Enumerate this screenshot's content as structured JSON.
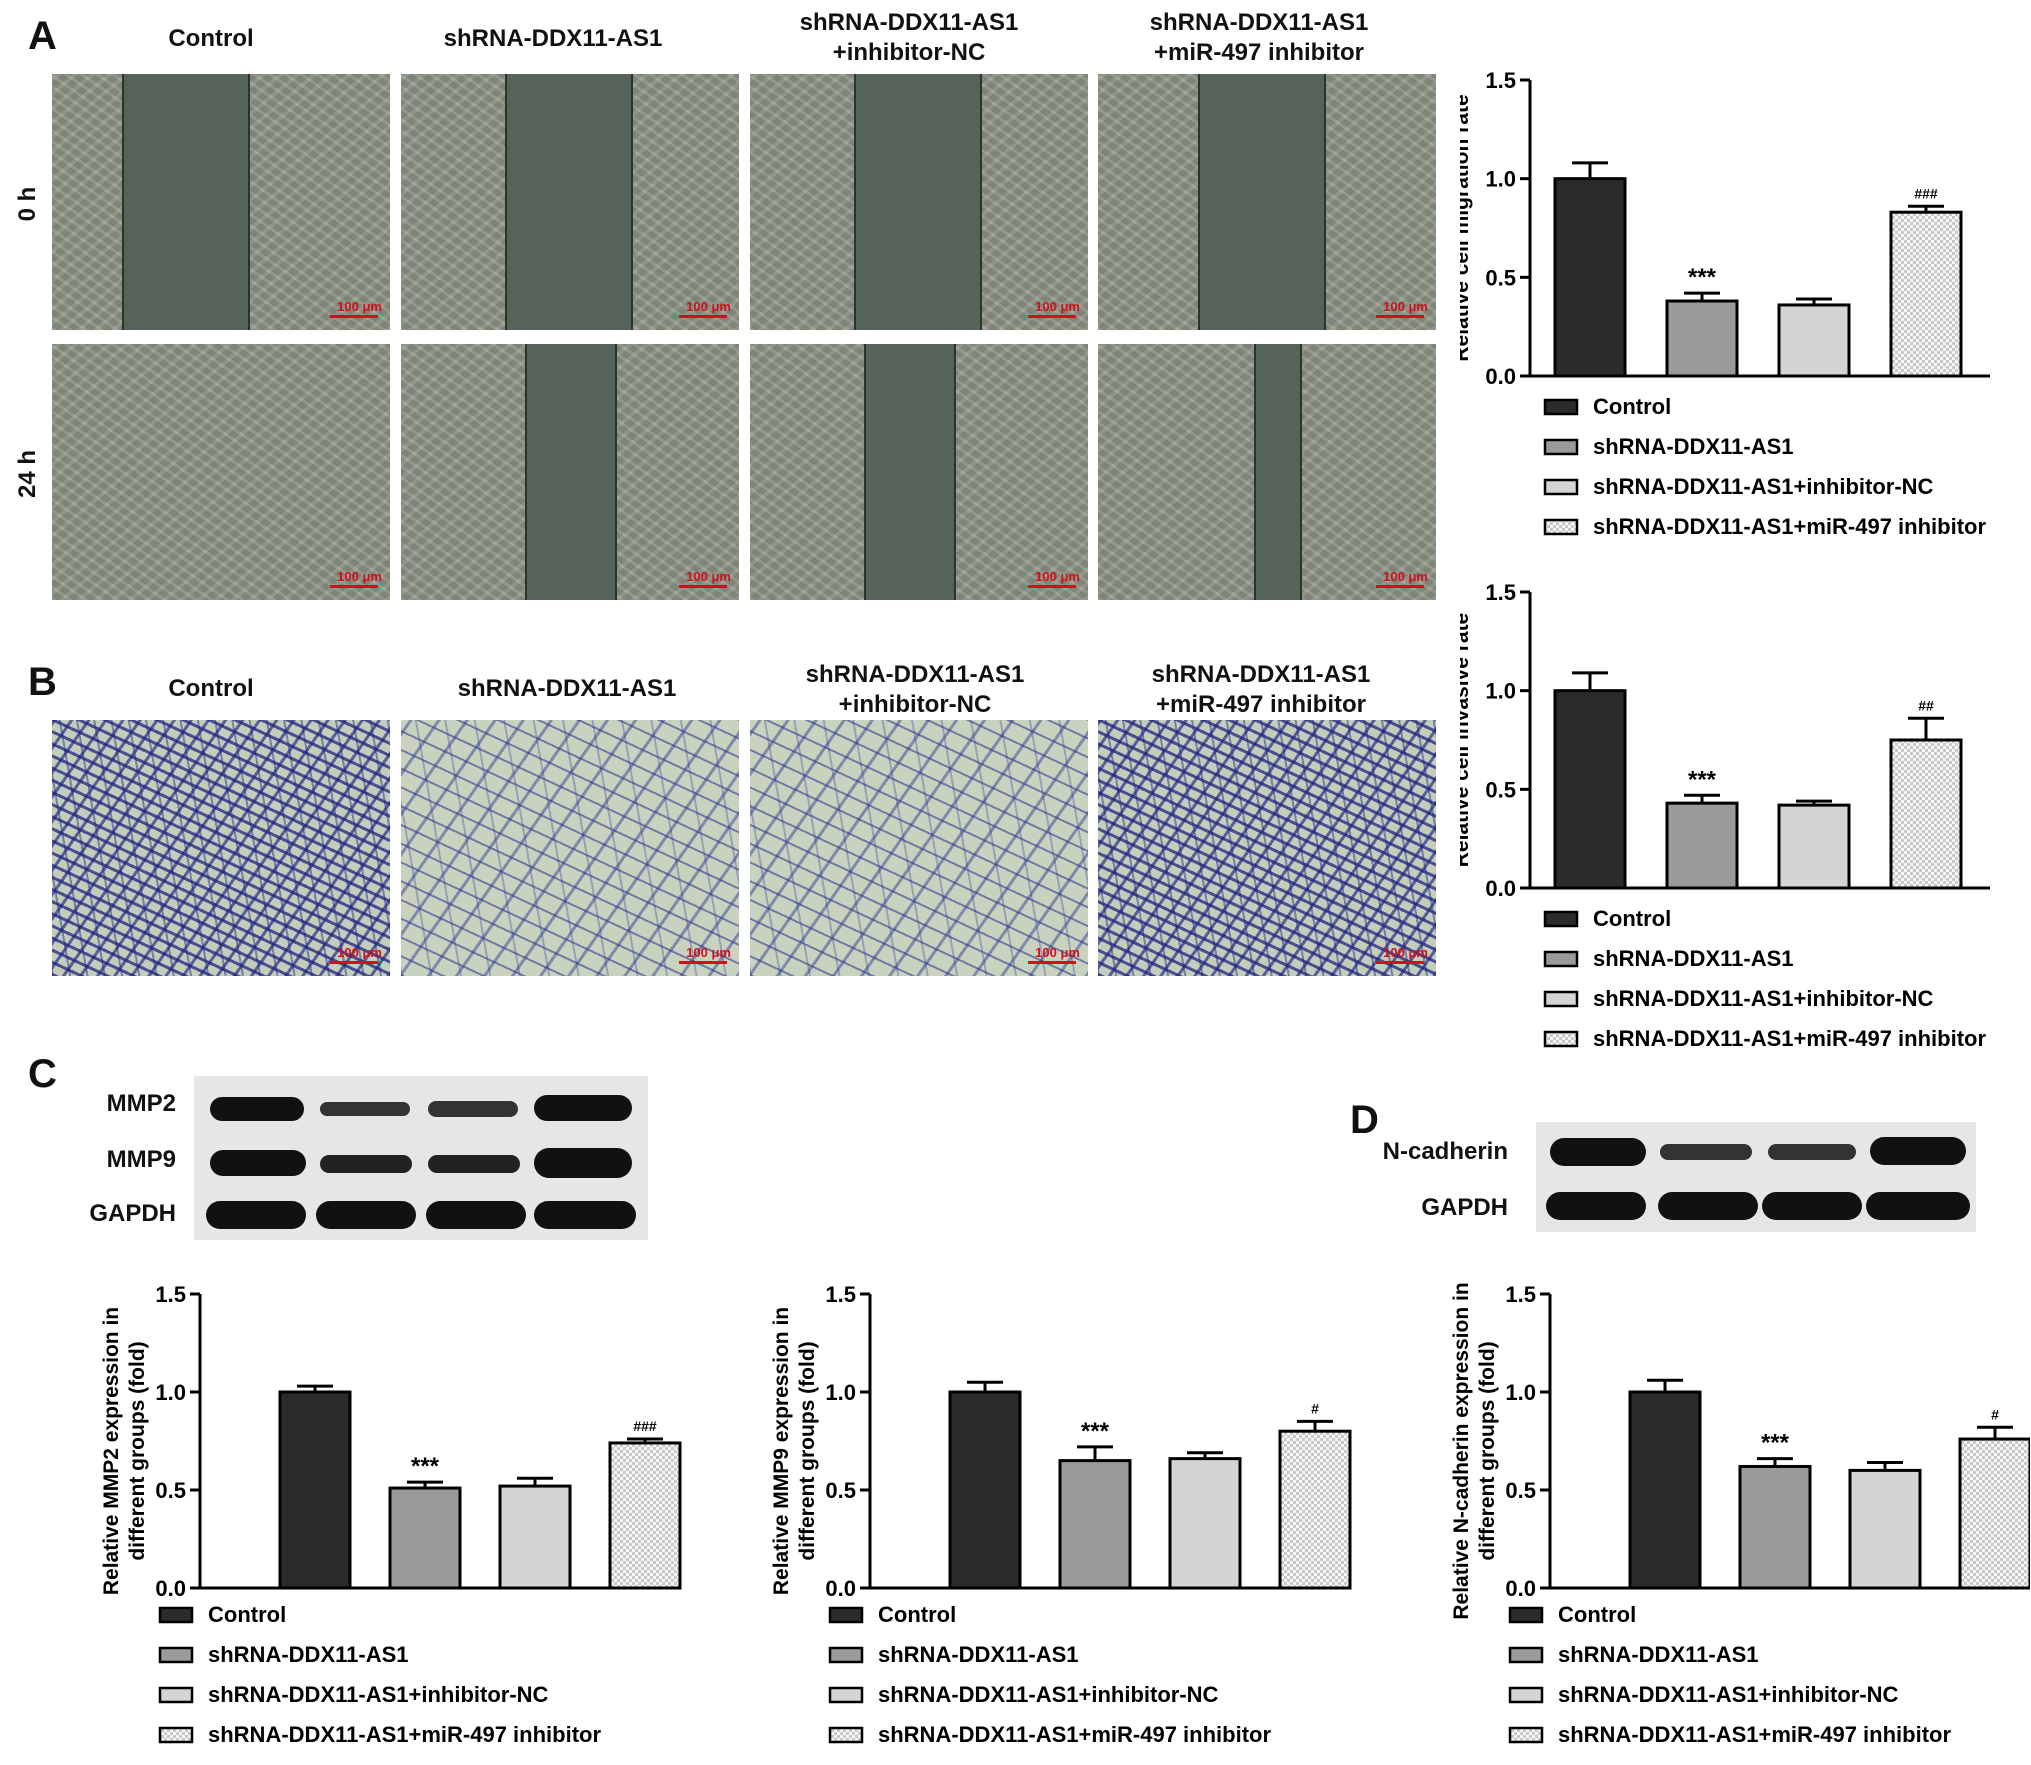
{
  "panels": {
    "a": "A",
    "b": "B",
    "c": "C",
    "d": "D"
  },
  "groups": [
    "Control",
    "shRNA-DDX11-AS1",
    "shRNA-DDX11-AS1+inhibitor-NC",
    "shRNA-DDX11-AS1+miR-497 inhibitor"
  ],
  "column_headers": [
    {
      "line1": "Control",
      "line2": ""
    },
    {
      "line1": "shRNA-DDX11-AS1",
      "line2": ""
    },
    {
      "line1": "shRNA-DDX11-AS1",
      "line2": "+inhibitor-NC"
    },
    {
      "line1": "shRNA-DDX11-AS1",
      "line2": "+miR-497 inhibitor"
    }
  ],
  "row_labels": {
    "t0": "0 h",
    "t24": "24 h"
  },
  "scale_bar": "100 μm",
  "blots": {
    "c": {
      "labels": [
        "MMP2",
        "MMP9",
        "GAPDH"
      ]
    },
    "d": {
      "labels": [
        "N-cadherin",
        "GAPDH"
      ]
    }
  },
  "colors": {
    "control": "#2b2b2b",
    "sh": "#9a9a9a",
    "nc": "#d4d4d4",
    "inh": "#f4f4f4"
  },
  "chart_data": [
    {
      "type": "bar",
      "id": "migration",
      "categories": [
        "Control",
        "shRNA-DDX11-AS1",
        "shRNA-DDX11-AS1+inhibitor-NC",
        "shRNA-DDX11-AS1+miR-497 inhibitor"
      ],
      "values": [
        1.0,
        0.38,
        0.36,
        0.83
      ],
      "errors": [
        0.08,
        0.04,
        0.03,
        0.03
      ],
      "annotations": [
        "",
        "***",
        "",
        "###"
      ],
      "ylabel": "Relative cell migration rate",
      "ylim": [
        0,
        1.5
      ],
      "yticks": [
        "0.0",
        "0.5",
        "1.0",
        "1.5"
      ],
      "legend": "below"
    },
    {
      "type": "bar",
      "id": "invasion",
      "categories": [
        "Control",
        "shRNA-DDX11-AS1",
        "shRNA-DDX11-AS1+inhibitor-NC",
        "shRNA-DDX11-AS1+miR-497 inhibitor"
      ],
      "values": [
        1.0,
        0.43,
        0.42,
        0.75
      ],
      "errors": [
        0.09,
        0.04,
        0.02,
        0.11
      ],
      "annotations": [
        "",
        "***",
        "",
        "##"
      ],
      "ylabel": "Relative cell invasive rate",
      "ylim": [
        0,
        1.5
      ],
      "yticks": [
        "0.0",
        "0.5",
        "1.0",
        "1.5"
      ],
      "legend": "below"
    },
    {
      "type": "bar",
      "id": "mmp2",
      "categories": [
        "Control",
        "shRNA-DDX11-AS1",
        "shRNA-DDX11-AS1+inhibitor-NC",
        "shRNA-DDX11-AS1+miR-497 inhibitor"
      ],
      "values": [
        1.0,
        0.51,
        0.52,
        0.74
      ],
      "errors": [
        0.03,
        0.03,
        0.04,
        0.02
      ],
      "annotations": [
        "",
        "***",
        "",
        "###"
      ],
      "ylabel_lines": [
        "Relative MMP2 expression in",
        "different groups (fold)"
      ],
      "ylim": [
        0,
        1.5
      ],
      "yticks": [
        "0.0",
        "0.5",
        "1.0",
        "1.5"
      ],
      "legend": "below"
    },
    {
      "type": "bar",
      "id": "mmp9",
      "categories": [
        "Control",
        "shRNA-DDX11-AS1",
        "shRNA-DDX11-AS1+inhibitor-NC",
        "shRNA-DDX11-AS1+miR-497 inhibitor"
      ],
      "values": [
        1.0,
        0.65,
        0.66,
        0.8
      ],
      "errors": [
        0.05,
        0.07,
        0.03,
        0.05
      ],
      "annotations": [
        "",
        "***",
        "",
        "#"
      ],
      "ylabel_lines": [
        "Relative MMP9 expression in",
        "different groups (fold)"
      ],
      "ylim": [
        0,
        1.5
      ],
      "yticks": [
        "0.0",
        "0.5",
        "1.0",
        "1.5"
      ],
      "legend": "below"
    },
    {
      "type": "bar",
      "id": "ncad",
      "categories": [
        "Control",
        "shRNA-DDX11-AS1",
        "shRNA-DDX11-AS1+inhibitor-NC",
        "shRNA-DDX11-AS1+miR-497 inhibitor"
      ],
      "values": [
        1.0,
        0.62,
        0.6,
        0.76
      ],
      "errors": [
        0.06,
        0.04,
        0.04,
        0.06
      ],
      "annotations": [
        "",
        "***",
        "",
        "#"
      ],
      "ylabel_lines": [
        "Relative N-cadherin expression in",
        "different groups (fold)"
      ],
      "ylim": [
        0,
        1.5
      ],
      "yticks": [
        "0.0",
        "0.5",
        "1.0",
        "1.5"
      ],
      "legend": "below"
    }
  ]
}
